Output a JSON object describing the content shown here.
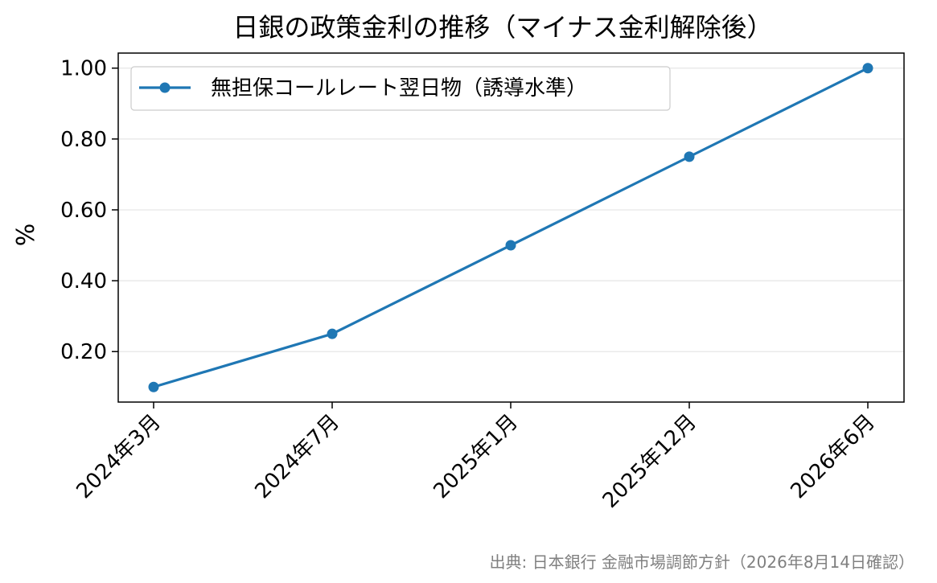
{
  "chart_data": {
    "type": "line",
    "title": "日銀の政策金利の推移（マイナス金利解除後）",
    "xlabel": "",
    "ylabel": "%",
    "categories": [
      "2024年3月",
      "2024年7月",
      "2025年1月",
      "2025年12月",
      "2026年6月"
    ],
    "series": [
      {
        "name": "無担保コールレート翌日物（誘導水準）",
        "values": [
          0.1,
          0.25,
          0.5,
          0.75,
          1.0
        ],
        "color": "#1f77b4"
      }
    ],
    "yticks": [
      "0.20",
      "0.40",
      "0.60",
      "0.80",
      "1.00"
    ],
    "ytick_values": [
      0.2,
      0.4,
      0.6,
      0.8,
      1.0
    ],
    "ylim": [
      0.0575,
      1.0425
    ],
    "grid": "horizontal",
    "legend_position": "upper-left",
    "source": "出典: 日本銀行 金融市場調節方針（2026年8月14日確認）"
  }
}
